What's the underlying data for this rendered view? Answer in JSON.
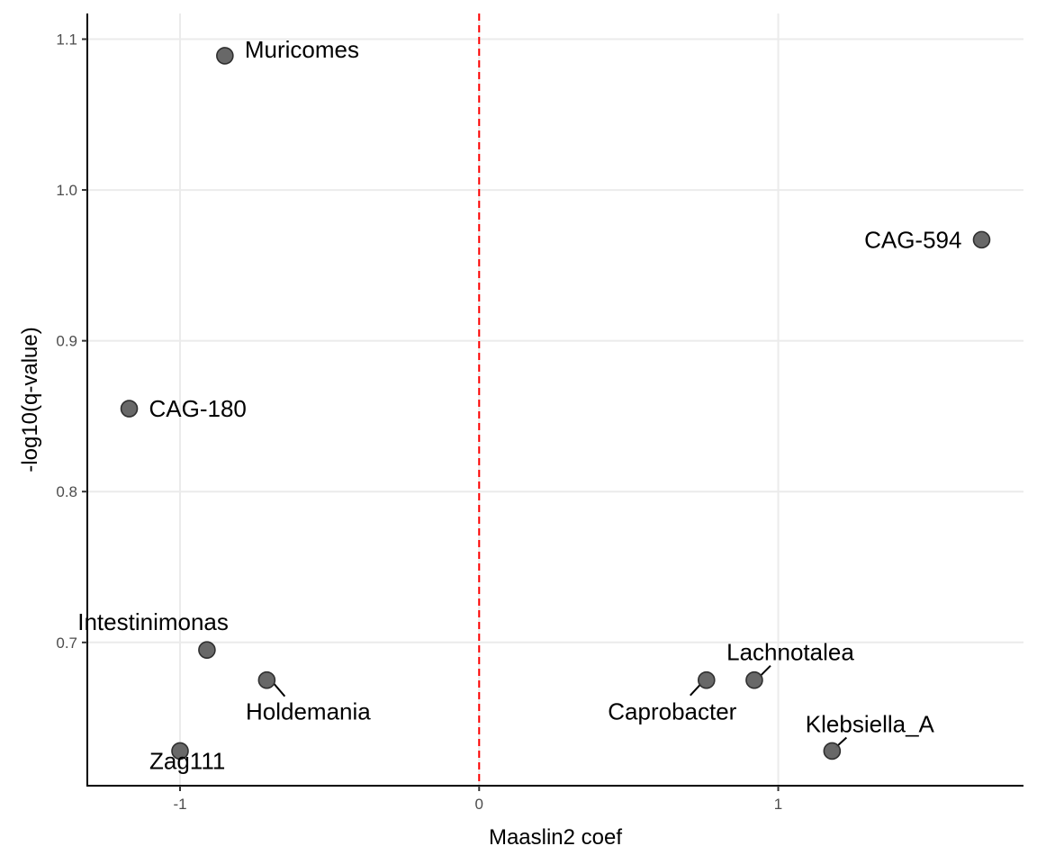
{
  "chart_data": {
    "type": "scatter",
    "title": "",
    "xlabel": "Maaslin2 coef",
    "ylabel": "-log10(q-value)",
    "xlim": [
      -1.31,
      1.82
    ],
    "ylim": [
      0.605,
      1.117
    ],
    "xticks": [
      -1,
      0,
      1
    ],
    "xtick_labels": [
      "-1",
      "0",
      "1"
    ],
    "yticks": [
      0.7,
      0.8,
      0.9,
      1.0,
      1.1
    ],
    "ytick_labels": [
      "0.7",
      "0.8",
      "0.9",
      "1.0",
      "1.1"
    ],
    "grid": true,
    "reference_line": {
      "x": 0,
      "style": "dashed",
      "color": "#ff0000"
    },
    "point_color": "#636363",
    "points": [
      {
        "label": "Muricomes",
        "x": -0.85,
        "y": 1.089
      },
      {
        "label": "CAG-594",
        "x": 1.68,
        "y": 0.967
      },
      {
        "label": "CAG-180",
        "x": -1.17,
        "y": 0.855
      },
      {
        "label": "Intestinimonas",
        "x": -0.91,
        "y": 0.695
      },
      {
        "label": "Holdemania",
        "x": -0.71,
        "y": 0.675
      },
      {
        "label": "Zag111",
        "x": -1.0,
        "y": 0.628
      },
      {
        "label": "Caprobacter",
        "x": 0.76,
        "y": 0.675
      },
      {
        "label": "Lachnotalea",
        "x": 0.92,
        "y": 0.675
      },
      {
        "label": "Klebsiella_A",
        "x": 1.18,
        "y": 0.628
      }
    ]
  }
}
